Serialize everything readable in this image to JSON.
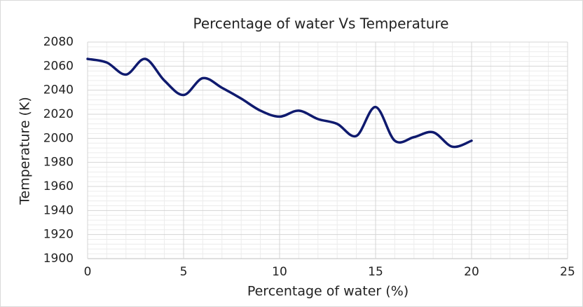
{
  "chart_data": {
    "type": "line",
    "title": "Percentage of water Vs Temperature",
    "x_label": "Percentage of water (%)",
    "y_label": "Temperature (K)",
    "x": [
      0,
      1,
      2,
      3,
      4,
      5,
      6,
      7,
      8,
      9,
      10,
      11,
      12,
      13,
      14,
      15,
      16,
      17,
      18,
      19,
      20
    ],
    "series": [
      {
        "name": "Temperature",
        "color": "#0f1a6e",
        "values": [
          2066,
          2063,
          2053,
          2066,
          2048,
          2036,
          2050,
          2042,
          2033,
          2023,
          2018,
          2023,
          2016,
          2012,
          2002,
          2026,
          1998,
          2001,
          2005,
          1993,
          1998
        ]
      }
    ],
    "xlim": [
      0,
      25
    ],
    "xticks": [
      0,
      5,
      10,
      15,
      20,
      25
    ],
    "ylim": [
      1900,
      2080
    ],
    "yticks": [
      1900,
      1920,
      1940,
      1960,
      1980,
      2000,
      2020,
      2040,
      2060,
      2080
    ],
    "grid": true,
    "minor_grid": true,
    "smooth": true
  }
}
